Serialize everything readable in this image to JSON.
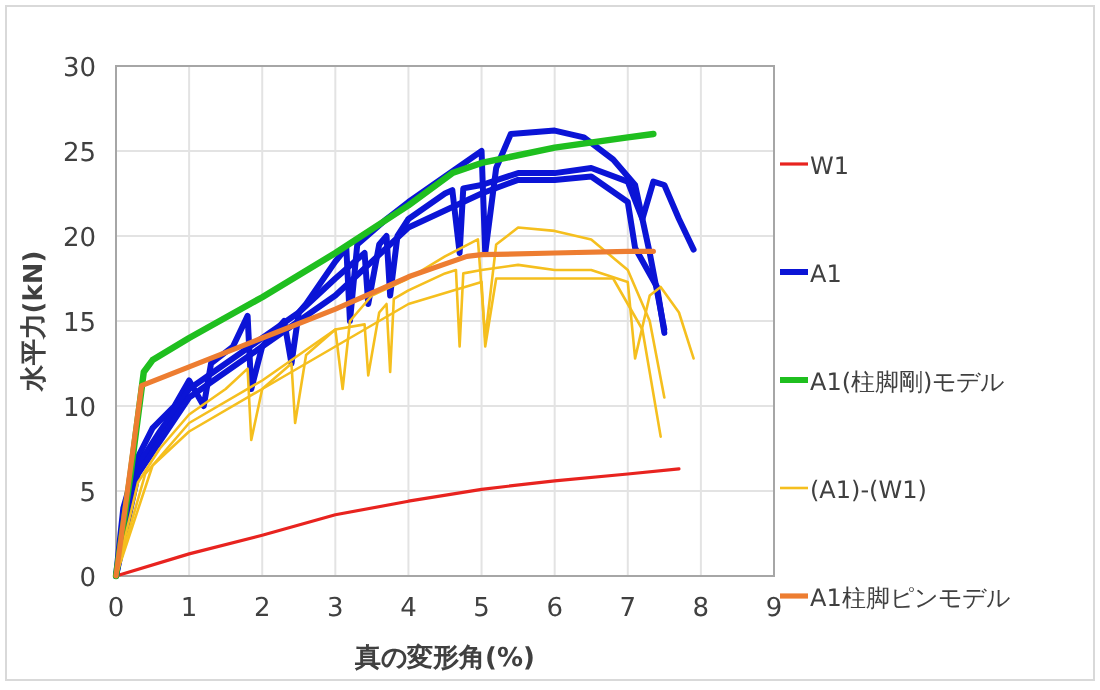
{
  "chart_data": {
    "type": "line",
    "xlabel": "真の変形角(%)",
    "ylabel": "水平力(kN)",
    "xlim": [
      0,
      9
    ],
    "ylim": [
      0,
      30
    ],
    "xticks": [
      0,
      1,
      2,
      3,
      4,
      5,
      6,
      7,
      8,
      9
    ],
    "yticks": [
      0,
      5,
      10,
      15,
      20,
      25,
      30
    ],
    "grid": true,
    "legend": "right",
    "marker": "none",
    "line_style": "solid",
    "series": [
      {
        "name": "W1",
        "color": "#e8231f",
        "x": [
          0,
          1,
          2,
          3,
          4,
          5,
          6,
          7,
          7.7
        ],
        "values": [
          0,
          1.3,
          2.4,
          3.6,
          4.4,
          5.1,
          5.6,
          6.0,
          6.3
        ]
      },
      {
        "name": "A1",
        "color": "#0b14d6",
        "x": [
          0,
          0.1,
          0.3,
          0.5,
          0.8,
          1,
          1.2,
          1.3,
          1.6,
          1.8,
          1.85,
          2,
          2.3,
          2.4,
          2.5,
          2.6,
          3,
          3.15,
          3.2,
          3.3,
          3.7,
          4,
          4.5,
          5,
          5.05,
          5.2,
          5.4,
          6,
          6.4,
          6.8,
          7.1,
          7.3,
          7.5
        ],
        "values": [
          0,
          4,
          7,
          8.7,
          10,
          11.5,
          10,
          12.5,
          13.5,
          15.3,
          11,
          13.5,
          15,
          12.5,
          15.5,
          16,
          18.5,
          19.3,
          15,
          19.5,
          21,
          22,
          23.5,
          25,
          19,
          24,
          26,
          26.2,
          25.8,
          24.5,
          23,
          19,
          14.5
        ]
      },
      {
        "color": "#0b14d6",
        "x": [
          0,
          0.3,
          0.6,
          1,
          1.5,
          2,
          2.5,
          3,
          3.4,
          3.45,
          3.6,
          3.7,
          3.75,
          3.85,
          4,
          4.5,
          4.6,
          4.7,
          4.75,
          5,
          5.5,
          6,
          6.5,
          7,
          7.2,
          7.35,
          7.5,
          7.7,
          7.9
        ],
        "values": [
          0,
          6.5,
          8.5,
          11,
          12.5,
          14,
          15.5,
          17.5,
          19,
          16,
          19.5,
          20,
          16.5,
          20,
          21,
          22.5,
          22.7,
          19,
          22.8,
          23,
          23.7,
          23.7,
          24,
          23.2,
          21,
          23.2,
          23,
          21,
          19.2
        ]
      },
      {
        "color": "#0b14d6",
        "x": [
          0,
          0.3,
          1,
          2,
          3,
          4,
          5,
          5.5,
          6,
          6.5,
          7,
          7.1,
          7.4,
          7.5
        ],
        "values": [
          0,
          6,
          10.5,
          13.5,
          16.5,
          20.5,
          22.5,
          23.3,
          23.3,
          23.5,
          22,
          19.3,
          17,
          14.3
        ]
      },
      {
        "name": "A1(柱脚剛)モデル",
        "color": "#1fbf1f",
        "x": [
          0,
          0.2,
          0.38,
          0.5,
          1,
          2,
          3,
          4,
          4.6,
          5,
          6,
          7,
          7.35
        ],
        "values": [
          0,
          6,
          12,
          12.7,
          14,
          16.4,
          19,
          21.8,
          23.7,
          24.3,
          25.2,
          25.8,
          26
        ]
      },
      {
        "name": "(A1)-(W1)",
        "color": "#f5bf1e",
        "x": [
          0,
          0.3,
          0.6,
          1,
          1.5,
          1.8,
          1.85,
          2,
          2.4,
          2.45,
          2.6,
          3,
          3.1,
          3.2,
          3.5,
          4,
          4.5,
          4.95,
          5.05,
          5.2,
          5.5,
          6,
          6.5,
          7,
          7.3,
          7.5
        ],
        "values": [
          0,
          5.5,
          7.5,
          9.5,
          11,
          12.2,
          8,
          11,
          12.5,
          9,
          13,
          14.5,
          11,
          15,
          16.5,
          17.5,
          18.8,
          19.8,
          14,
          19.5,
          20.5,
          20.3,
          19.8,
          18,
          15,
          10.5
        ]
      },
      {
        "color": "#f5bf1e",
        "x": [
          0,
          0.4,
          1,
          2,
          2.5,
          3,
          3.4,
          3.45,
          3.6,
          3.7,
          3.75,
          3.8,
          4,
          4.5,
          4.65,
          4.7,
          4.75,
          5,
          5.5,
          6,
          6.5,
          7,
          7.1,
          7.3,
          7.45,
          7.7,
          7.9
        ],
        "values": [
          0,
          6,
          9,
          11.5,
          13,
          14.5,
          14.8,
          11.8,
          15.5,
          16,
          12,
          16.3,
          16.8,
          17.8,
          18,
          13.5,
          17.8,
          18,
          18.3,
          18,
          18,
          17.3,
          12.8,
          16.5,
          17,
          15.5,
          12.8
        ]
      },
      {
        "color": "#f5bf1e",
        "x": [
          0,
          0.5,
          1,
          2,
          3,
          4,
          5,
          5.05,
          5.2,
          6,
          6.8,
          7.2,
          7.45
        ],
        "values": [
          0,
          6.5,
          8.5,
          11,
          13.5,
          16,
          17.3,
          13.5,
          17.5,
          17.5,
          17.5,
          14.5,
          8.2
        ]
      },
      {
        "name": "A1柱脚ピンモデル",
        "color": "#ed7d31",
        "x": [
          0,
          0.35,
          1,
          2,
          3,
          4,
          4.8,
          5,
          6,
          7,
          7.35
        ],
        "values": [
          0,
          11.2,
          12.3,
          14,
          15.7,
          17.6,
          18.8,
          18.9,
          19,
          19.1,
          19.1
        ]
      }
    ]
  }
}
